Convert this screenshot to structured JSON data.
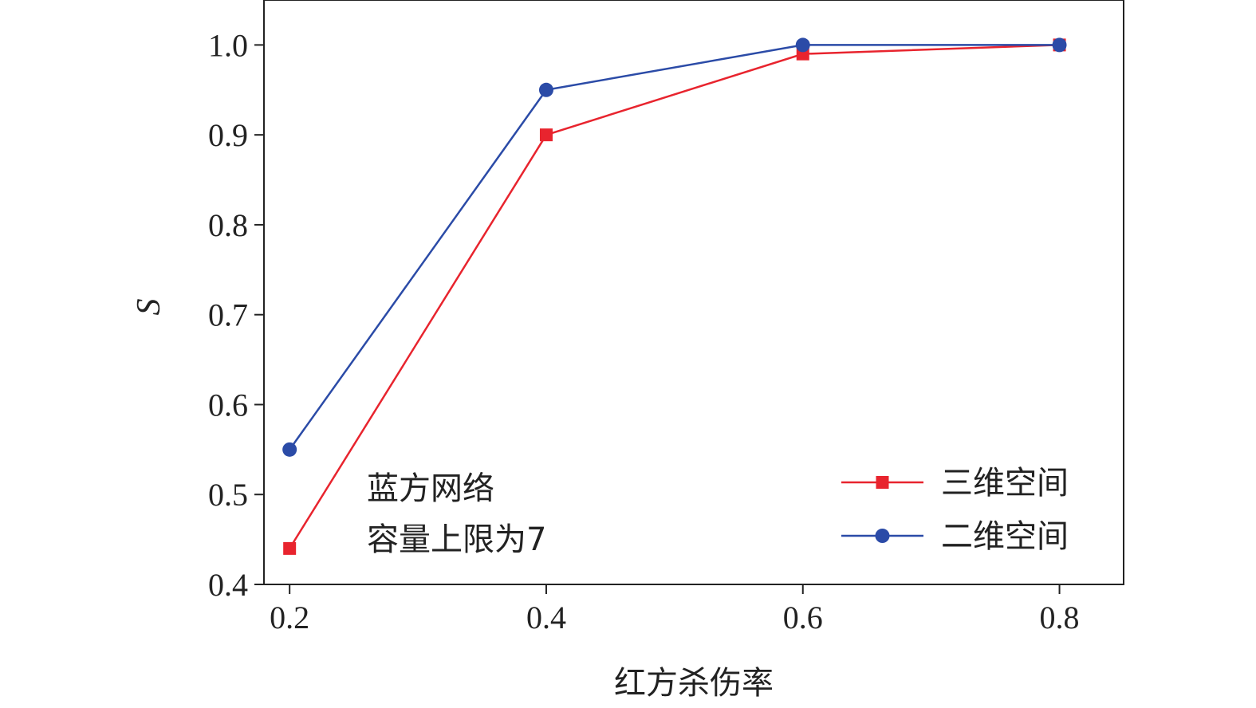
{
  "chart_data": {
    "type": "line",
    "title": "",
    "xlabel": "红方杀伤率",
    "ylabel": "S",
    "x": [
      0.2,
      0.4,
      0.6,
      0.8
    ],
    "xticks": [
      "0.2",
      "0.4",
      "0.6",
      "0.8"
    ],
    "yticks": [
      "0.4",
      "0.5",
      "0.6",
      "0.7",
      "0.8",
      "0.9",
      "1.0"
    ],
    "xlim": [
      0.18,
      0.85
    ],
    "ylim": [
      0.4,
      1.05
    ],
    "grid": false,
    "legend_position": "bottom-right",
    "series": [
      {
        "name": "三维空间",
        "values": [
          0.44,
          0.9,
          0.99,
          1.0
        ],
        "color": "#e8242e",
        "marker": "square"
      },
      {
        "name": "二维空间",
        "values": [
          0.55,
          0.95,
          1.0,
          1.0
        ],
        "color": "#2b4ba7",
        "marker": "circle"
      }
    ],
    "annotation": {
      "line1": "蓝方网络",
      "line2": "容量上限为7"
    }
  }
}
